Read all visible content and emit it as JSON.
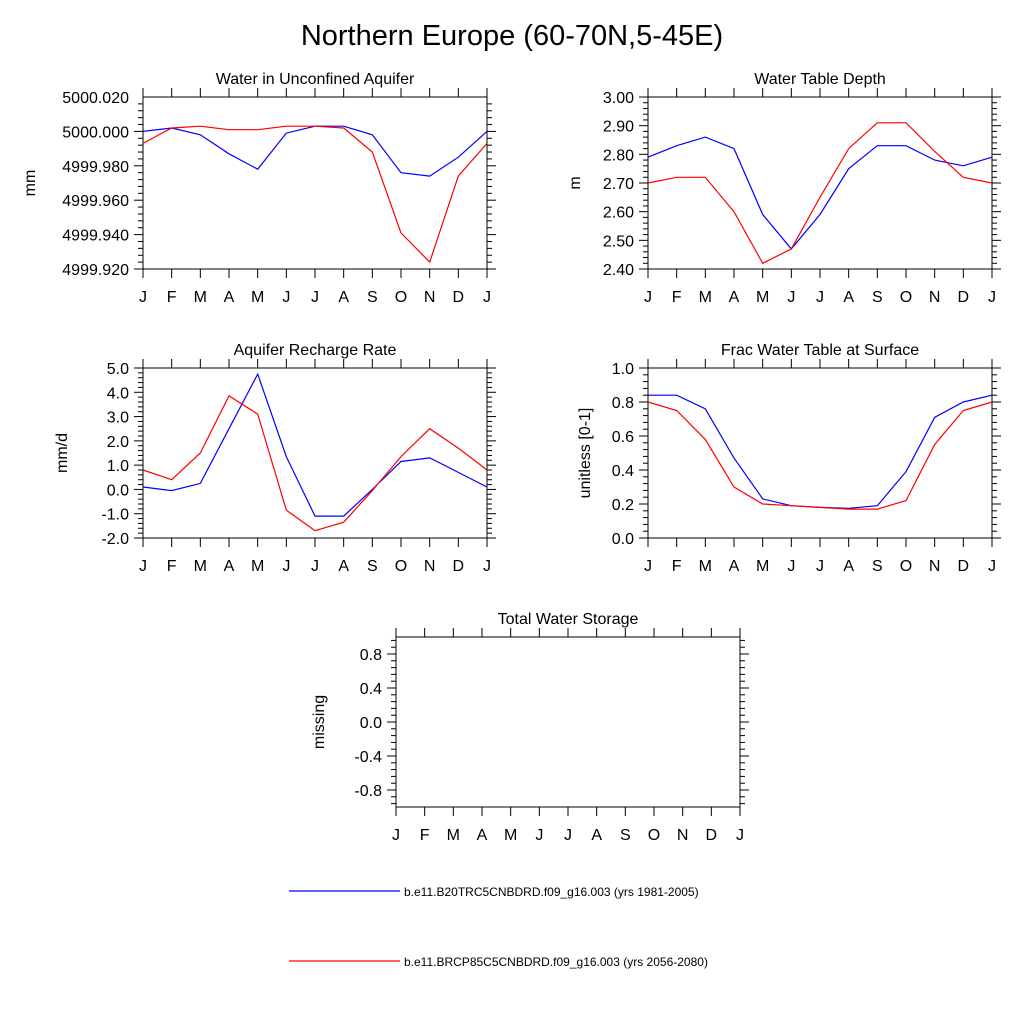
{
  "figure": {
    "title": "Northern Europe (60-70N,5-45E)"
  },
  "colors": {
    "series_1": "#0000ff",
    "series_2": "#ff0000",
    "axis": "#000000"
  },
  "chart_data": [
    {
      "type": "line",
      "title": "Water in Unconfined Aquifer",
      "ylabel": "mm",
      "categories": [
        "J",
        "F",
        "M",
        "A",
        "M",
        "J",
        "J",
        "A",
        "S",
        "O",
        "N",
        "D",
        "J"
      ],
      "ylim": [
        4999.92,
        5000.02
      ],
      "yticks": [
        5000.02,
        5000.0,
        4999.98,
        4999.96,
        4999.94,
        4999.92
      ],
      "ytick_labels": [
        "5000.020",
        "5000.000",
        "4999.980",
        "4999.960",
        "4999.940",
        "4999.920"
      ],
      "series": [
        {
          "values": [
            5000.0,
            5000.002,
            4999.998,
            4999.987,
            4999.978,
            4999.999,
            5000.003,
            5000.003,
            4999.998,
            4999.976,
            4999.974,
            4999.985,
            5000.0
          ]
        },
        {
          "values": [
            4999.993,
            5000.002,
            5000.003,
            5000.001,
            5000.001,
            5000.003,
            5000.003,
            5000.002,
            4999.988,
            4999.941,
            4999.924,
            4999.974,
            4999.993
          ]
        }
      ]
    },
    {
      "type": "line",
      "title": "Water Table Depth",
      "ylabel": "m",
      "categories": [
        "J",
        "F",
        "M",
        "A",
        "M",
        "J",
        "J",
        "A",
        "S",
        "O",
        "N",
        "D",
        "J"
      ],
      "ylim": [
        2.4,
        3.0
      ],
      "yticks": [
        3.0,
        2.9,
        2.8,
        2.7,
        2.6,
        2.5,
        2.4
      ],
      "ytick_labels": [
        "3.00",
        "2.90",
        "2.80",
        "2.70",
        "2.60",
        "2.50",
        "2.40"
      ],
      "series": [
        {
          "values": [
            2.79,
            2.83,
            2.86,
            2.82,
            2.59,
            2.47,
            2.59,
            2.75,
            2.83,
            2.83,
            2.78,
            2.76,
            2.79
          ]
        },
        {
          "values": [
            2.7,
            2.72,
            2.72,
            2.6,
            2.42,
            2.47,
            2.65,
            2.82,
            2.91,
            2.91,
            2.81,
            2.72,
            2.7
          ]
        }
      ]
    },
    {
      "type": "line",
      "title": "Aquifer Recharge Rate",
      "ylabel": "mm/d",
      "categories": [
        "J",
        "F",
        "M",
        "A",
        "M",
        "J",
        "J",
        "A",
        "S",
        "O",
        "N",
        "D",
        "J"
      ],
      "ylim": [
        -2.0,
        5.0
      ],
      "yticks": [
        5.0,
        4.0,
        3.0,
        2.0,
        1.0,
        0.0,
        -1.0,
        -2.0
      ],
      "ytick_labels": [
        "5.0",
        "4.0",
        "3.0",
        "2.0",
        "1.0",
        "0.0",
        "-1.0",
        "-2.0"
      ],
      "series": [
        {
          "values": [
            0.1,
            -0.05,
            0.25,
            2.5,
            4.75,
            1.35,
            -1.1,
            -1.1,
            0.0,
            1.15,
            1.3,
            0.7,
            0.1
          ]
        },
        {
          "values": [
            0.8,
            0.4,
            1.5,
            3.85,
            3.1,
            -0.85,
            -1.7,
            -1.35,
            -0.05,
            1.35,
            2.5,
            1.7,
            0.8
          ]
        }
      ]
    },
    {
      "type": "line",
      "title": "Frac Water Table at Surface",
      "ylabel": "unitless [0-1]",
      "categories": [
        "J",
        "F",
        "M",
        "A",
        "M",
        "J",
        "J",
        "A",
        "S",
        "O",
        "N",
        "D",
        "J"
      ],
      "ylim": [
        0.0,
        1.0
      ],
      "yticks": [
        1.0,
        0.8,
        0.6,
        0.4,
        0.2,
        0.0
      ],
      "ytick_labels": [
        "1.0",
        "0.8",
        "0.6",
        "0.4",
        "0.2",
        "0.0"
      ],
      "series": [
        {
          "values": [
            0.84,
            0.84,
            0.76,
            0.47,
            0.23,
            0.19,
            0.18,
            0.175,
            0.19,
            0.39,
            0.71,
            0.8,
            0.84
          ]
        },
        {
          "values": [
            0.8,
            0.75,
            0.58,
            0.3,
            0.2,
            0.19,
            0.18,
            0.17,
            0.17,
            0.22,
            0.55,
            0.75,
            0.8
          ]
        }
      ]
    },
    {
      "type": "line",
      "title": "Total Water Storage",
      "ylabel": "missing",
      "categories": [
        "J",
        "F",
        "M",
        "A",
        "M",
        "J",
        "J",
        "A",
        "S",
        "O",
        "N",
        "D",
        "J"
      ],
      "ylim": [
        -1.0,
        1.0
      ],
      "yticks": [
        0.8,
        0.4,
        0.0,
        -0.4,
        -0.8
      ],
      "ytick_labels": [
        "0.8",
        "0.4",
        "0.0",
        "-0.4",
        "-0.8"
      ],
      "series": []
    }
  ],
  "legend": {
    "placement": "bottom",
    "entries": [
      {
        "label": "b.e11.B20TRC5CNBDRD.f09_g16.003 (yrs 1981-2005)"
      },
      {
        "label": "b.e11.BRCP85C5CNBDRD.f09_g16.003 (yrs 2056-2080)"
      }
    ]
  }
}
